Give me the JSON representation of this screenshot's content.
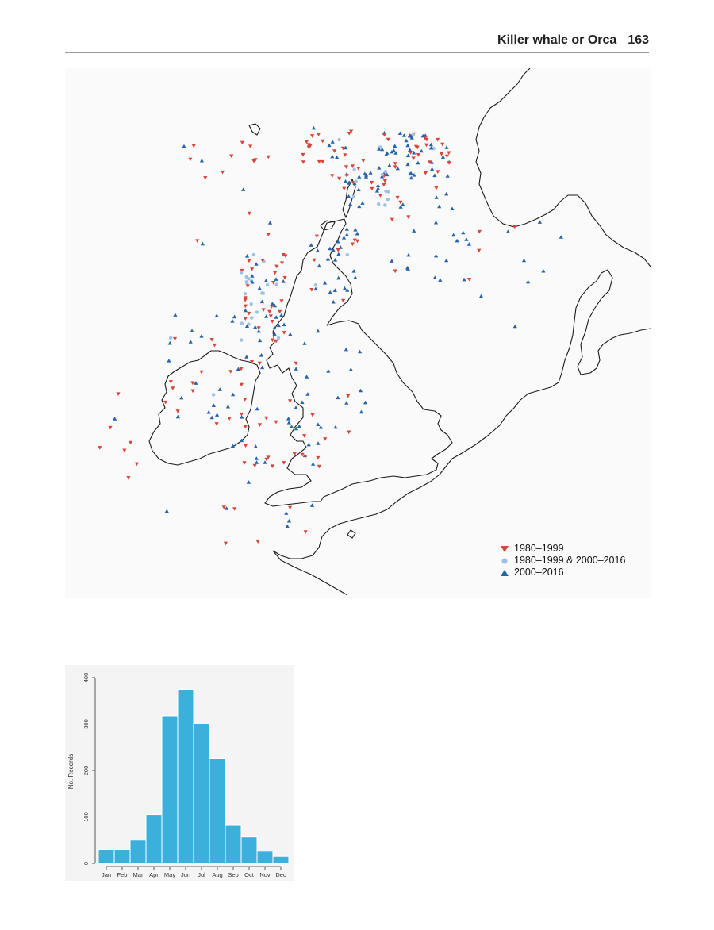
{
  "header": {
    "title": "Killer whale or Orca",
    "page_number": "163"
  },
  "map": {
    "colors": {
      "land_outline": "#1a1a1a",
      "series_1980_1999": "#d9453b",
      "series_both": "#9cc3e6",
      "series_2000_2016": "#2563ae"
    },
    "legend": [
      {
        "label": "1980–1999",
        "symbol": "triangle-down",
        "color": "#d9453b"
      },
      {
        "label": "1980–1999 & 2000–2016",
        "symbol": "circle",
        "color": "#9cc3e6"
      },
      {
        "label": "2000–2016",
        "symbol": "triangle-up",
        "color": "#2563ae"
      }
    ]
  },
  "chart_data": {
    "type": "bar",
    "categories": [
      "Jan",
      "Feb",
      "Mar",
      "Apr",
      "May",
      "Jun",
      "Jul",
      "Aug",
      "Sep",
      "Oct",
      "Nov",
      "Dec"
    ],
    "values": [
      30,
      30,
      50,
      105,
      318,
      375,
      300,
      226,
      82,
      57,
      26,
      15
    ],
    "title": "",
    "xlabel": "",
    "ylabel": "No. Records",
    "ylim": [
      0,
      400
    ],
    "yticks": [
      "0",
      "100",
      "200",
      "300",
      "400"
    ],
    "bar_color": "#3bb0dc",
    "grid": false
  }
}
